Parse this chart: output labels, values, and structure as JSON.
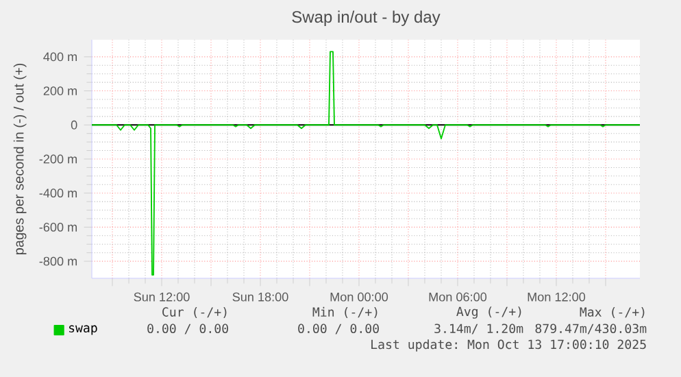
{
  "chart_data": {
    "type": "line",
    "title": "Swap in/out - by day",
    "ylabel": "pages per second in (-) / out (+)",
    "x": [
      "2025-10-12T07:45",
      "2025-10-12T09:15",
      "2025-10-12T09:30",
      "2025-10-12T09:45",
      "2025-10-12T10:05",
      "2025-10-12T10:20",
      "2025-10-12T10:35",
      "2025-10-12T11:10",
      "2025-10-12T11:20",
      "2025-10-12T11:25",
      "2025-10-12T11:30",
      "2025-10-12T11:35",
      "2025-10-12T12:55",
      "2025-10-12T13:05",
      "2025-10-12T13:15",
      "2025-10-12T16:20",
      "2025-10-12T16:30",
      "2025-10-12T16:40",
      "2025-10-12T17:10",
      "2025-10-12T17:25",
      "2025-10-12T17:40",
      "2025-10-12T20:15",
      "2025-10-12T20:30",
      "2025-10-12T20:45",
      "2025-10-12T22:10",
      "2025-10-12T22:15",
      "2025-10-12T22:25",
      "2025-10-12T22:30",
      "2025-10-13T01:10",
      "2025-10-13T01:20",
      "2025-10-13T01:30",
      "2025-10-13T04:00",
      "2025-10-13T04:15",
      "2025-10-13T04:30",
      "2025-10-13T04:45",
      "2025-10-13T05:00",
      "2025-10-13T05:15",
      "2025-10-13T06:35",
      "2025-10-13T06:45",
      "2025-10-13T06:55",
      "2025-10-13T11:20",
      "2025-10-13T11:30",
      "2025-10-13T11:40",
      "2025-10-13T14:40",
      "2025-10-13T14:50",
      "2025-10-13T15:00",
      "2025-10-13T17:05"
    ],
    "series": [
      {
        "name": "swap",
        "color": "#00cc00",
        "values": [
          0,
          0,
          -30,
          0,
          0,
          -30,
          0,
          0,
          -20,
          -880,
          -880,
          0,
          0,
          -10,
          0,
          0,
          -10,
          0,
          0,
          -20,
          0,
          0,
          -20,
          0,
          0,
          430,
          430,
          0,
          0,
          -10,
          0,
          0,
          -20,
          0,
          0,
          -80,
          0,
          0,
          -10,
          0,
          0,
          -10,
          0,
          0,
          -10,
          0,
          0
        ]
      }
    ],
    "xlim": [
      "2025-10-12T07:45",
      "2025-10-13T17:05"
    ],
    "ylim": [
      -900,
      500
    ],
    "xticks": [
      {
        "value": "2025-10-12T09:00",
        "label": null
      },
      {
        "value": "2025-10-12T12:00",
        "label": "Sun 12:00"
      },
      {
        "value": "2025-10-12T15:00",
        "label": null
      },
      {
        "value": "2025-10-12T18:00",
        "label": "Sun 18:00"
      },
      {
        "value": "2025-10-12T21:00",
        "label": null
      },
      {
        "value": "2025-10-13T00:00",
        "label": "Mon 00:00"
      },
      {
        "value": "2025-10-13T03:00",
        "label": null
      },
      {
        "value": "2025-10-13T06:00",
        "label": "Mon 06:00"
      },
      {
        "value": "2025-10-13T09:00",
        "label": null
      },
      {
        "value": "2025-10-13T12:00",
        "label": "Mon 12:00"
      },
      {
        "value": "2025-10-13T15:00",
        "label": null
      }
    ],
    "yticks": [
      {
        "value": -800,
        "label": "-800 m"
      },
      {
        "value": -600,
        "label": "-600 m"
      },
      {
        "value": -400,
        "label": "-400 m"
      },
      {
        "value": -200,
        "label": "-200 m"
      },
      0,
      {
        "value": 200,
        "label": "200 m"
      },
      {
        "value": 400,
        "label": "400 m"
      }
    ],
    "grid": true,
    "legend": "bottom left",
    "ref_lines": [
      {
        "axis": "y",
        "value": 0,
        "color": "#000000"
      }
    ],
    "annotations": [
      "Cur (-/+)",
      "Min (-/+)",
      "Avg (-/+)",
      "Max (-/+)",
      "0.00 /  0.00",
      "0.00 /  0.00",
      "3.14m/  1.20m",
      "879.47m/430.03m",
      "Last update: Mon Oct 13 17:00:10 2025"
    ]
  }
}
